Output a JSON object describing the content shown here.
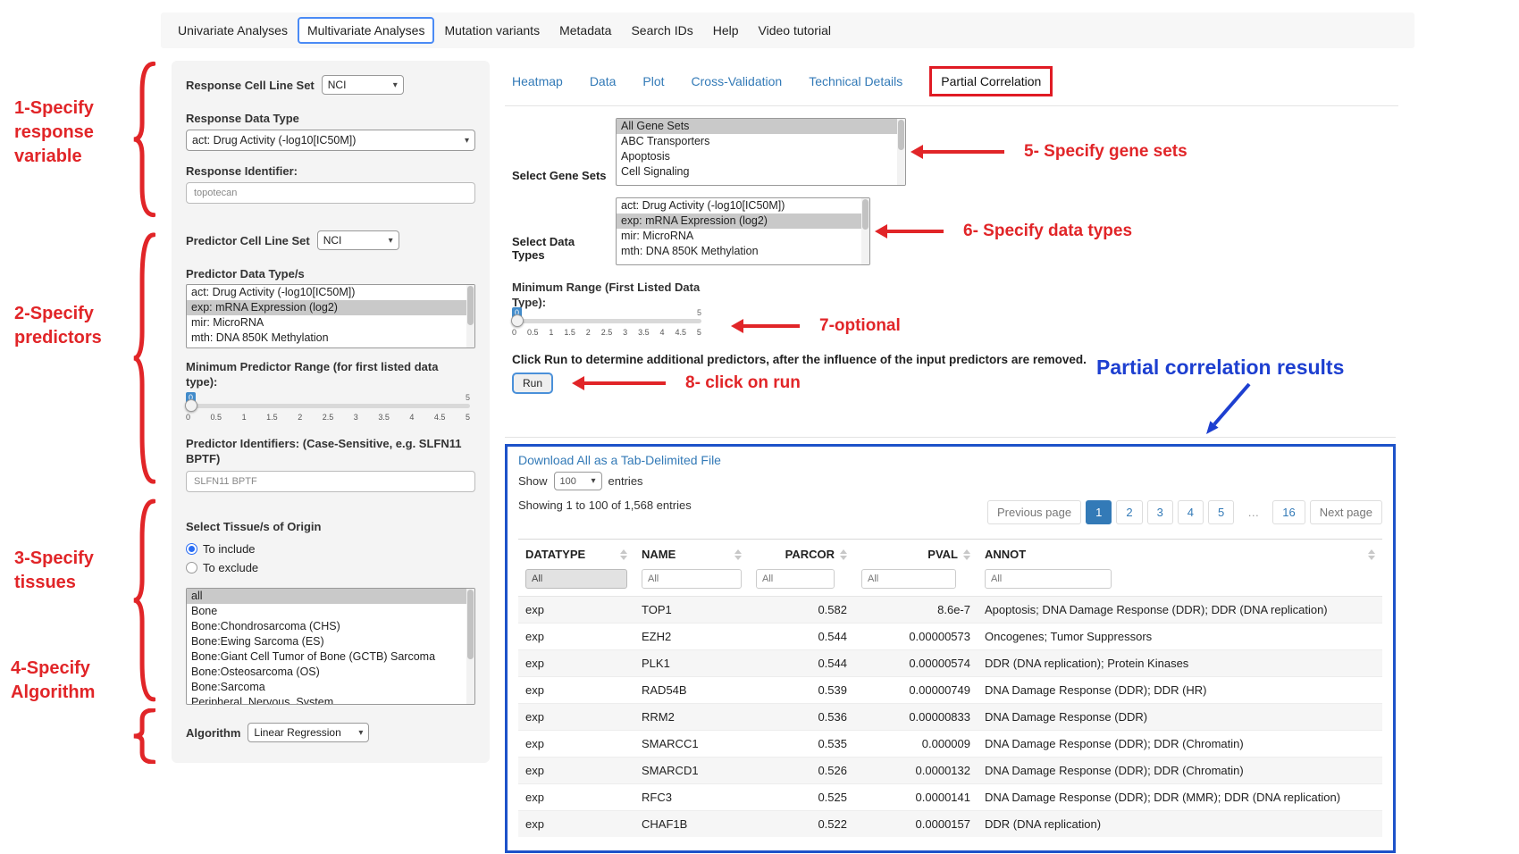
{
  "nav": {
    "items": [
      {
        "label": "Univariate Analyses"
      },
      {
        "label": "Multivariate Analyses",
        "active": true
      },
      {
        "label": "Mutation variants"
      },
      {
        "label": "Metadata"
      },
      {
        "label": "Search IDs"
      },
      {
        "label": "Help"
      },
      {
        "label": "Video tutorial"
      }
    ]
  },
  "annotations": {
    "left": [
      {
        "label": "1-Specify response variable"
      },
      {
        "label": "2-Specify predictors"
      },
      {
        "label": "3-Specify tissues"
      },
      {
        "label": "4-Specify Algorithm"
      }
    ],
    "gene_sets": "5- Specify gene sets",
    "data_types": "6- Specify data types",
    "optional": "7-optional",
    "run": "8- click on run",
    "results_heading": "Partial correlation results",
    "red_color": "#e12528",
    "blue_color": "#1d3fd0"
  },
  "form": {
    "response_cell_line_set": {
      "label": "Response Cell Line Set",
      "value": "NCI"
    },
    "response_data_type": {
      "label": "Response Data Type",
      "value": "act: Drug Activity (-log10[IC50M])"
    },
    "response_identifier": {
      "label": "Response Identifier:",
      "value": "topotecan"
    },
    "predictor_cell_line_set": {
      "label": "Predictor Cell Line Set",
      "value": "NCI"
    },
    "predictor_data_types": {
      "label": "Predictor Data Type/s",
      "options": [
        {
          "label": "act: Drug Activity (-log10[IC50M])",
          "selected": false
        },
        {
          "label": "exp: mRNA Expression (log2)",
          "selected": true
        },
        {
          "label": "mir: MicroRNA",
          "selected": false
        },
        {
          "label": "mth: DNA 850K Methylation",
          "selected": false
        }
      ]
    },
    "min_predictor_range": {
      "label": "Minimum Predictor Range (for first listed data type):",
      "value": "0",
      "max_label": "5",
      "ticks": [
        "0",
        "0.5",
        "1",
        "1.5",
        "2",
        "2.5",
        "3",
        "3.5",
        "4",
        "4.5",
        "5"
      ]
    },
    "predictor_identifiers": {
      "label": "Predictor Identifiers: (Case-Sensitive, e.g. SLFN11 BPTF)",
      "value": "SLFN11 BPTF"
    },
    "tissues": {
      "label": "Select Tissue/s of Origin",
      "radios": [
        {
          "label": "To include",
          "checked": true
        },
        {
          "label": "To exclude",
          "checked": false
        }
      ],
      "options": [
        {
          "label": "all",
          "selected": true
        },
        {
          "label": "Bone",
          "selected": false
        },
        {
          "label": "Bone:Chondrosarcoma (CHS)",
          "selected": false
        },
        {
          "label": "Bone:Ewing Sarcoma (ES)",
          "selected": false
        },
        {
          "label": "Bone:Giant Cell Tumor of Bone (GCTB) Sarcoma",
          "selected": false
        },
        {
          "label": "Bone:Osteosarcoma (OS)",
          "selected": false
        },
        {
          "label": "Bone:Sarcoma",
          "selected": false
        },
        {
          "label": "Peripheral_Nervous_System",
          "selected": false
        }
      ]
    },
    "algorithm": {
      "label": "Algorithm",
      "value": "Linear Regression"
    }
  },
  "content": {
    "tabs": [
      {
        "label": "Heatmap"
      },
      {
        "label": "Data"
      },
      {
        "label": "Plot"
      },
      {
        "label": "Cross-Validation"
      },
      {
        "label": "Technical Details"
      },
      {
        "label": "Partial Correlation",
        "active": true
      }
    ],
    "gene_sets": {
      "label": "Select Gene Sets",
      "options": [
        {
          "label": "All Gene Sets",
          "selected": true
        },
        {
          "label": "ABC Transporters",
          "selected": false
        },
        {
          "label": "Apoptosis",
          "selected": false
        },
        {
          "label": "Cell Signaling",
          "selected": false
        }
      ]
    },
    "data_types": {
      "label": "Select Data Types",
      "options": [
        {
          "label": "act: Drug Activity (-log10[IC50M])",
          "selected": false
        },
        {
          "label": "exp: mRNA Expression (log2)",
          "selected": true
        },
        {
          "label": "mir: MicroRNA",
          "selected": false
        },
        {
          "label": "mth: DNA 850K Methylation",
          "selected": false
        }
      ]
    },
    "min_range": {
      "label": "Minimum Range (First Listed Data Type):",
      "value": "0",
      "max_label": "5",
      "ticks": [
        "0",
        "0.5",
        "1",
        "1.5",
        "2",
        "2.5",
        "3",
        "3.5",
        "4",
        "4.5",
        "5"
      ]
    },
    "run_instruction": "Click Run to determine additional predictors, after the influence of the input predictors are removed.",
    "run_button": "Run"
  },
  "results": {
    "download_link": "Download All as a Tab-Delimited File",
    "show_label": "Show",
    "show_value": "100",
    "entries_label": "entries",
    "showing_text": "Showing 1 to 100 of 1,568 entries",
    "pagination": [
      "Previous page",
      "1",
      "2",
      "3",
      "4",
      "5",
      "…",
      "16",
      "Next page"
    ],
    "table": {
      "columns": [
        "DATATYPE",
        "NAME",
        "PARCOR",
        "PVAL",
        "ANNOT"
      ],
      "filter_placeholder": "All",
      "rows": [
        [
          "exp",
          "TOP1",
          "0.582",
          "8.6e-7",
          "Apoptosis; DNA Damage Response (DDR); DDR (DNA replication)"
        ],
        [
          "exp",
          "EZH2",
          "0.544",
          "0.00000573",
          "Oncogenes; Tumor Suppressors"
        ],
        [
          "exp",
          "PLK1",
          "0.544",
          "0.00000574",
          "DDR (DNA replication); Protein Kinases"
        ],
        [
          "exp",
          "RAD54B",
          "0.539",
          "0.00000749",
          "DNA Damage Response (DDR); DDR (HR)"
        ],
        [
          "exp",
          "RRM2",
          "0.536",
          "0.00000833",
          "DNA Damage Response (DDR)"
        ],
        [
          "exp",
          "SMARCC1",
          "0.535",
          "0.000009",
          "DNA Damage Response (DDR); DDR (Chromatin)"
        ],
        [
          "exp",
          "SMARCD1",
          "0.526",
          "0.0000132",
          "DNA Damage Response (DDR); DDR (Chromatin)"
        ],
        [
          "exp",
          "RFC3",
          "0.525",
          "0.0000141",
          "DNA Damage Response (DDR); DDR (MMR); DDR (DNA replication)"
        ],
        [
          "exp",
          "CHAF1B",
          "0.522",
          "0.0000157",
          "DDR (DNA replication)"
        ]
      ]
    }
  },
  "icons": {
    "dropdown_caret": "▾"
  }
}
